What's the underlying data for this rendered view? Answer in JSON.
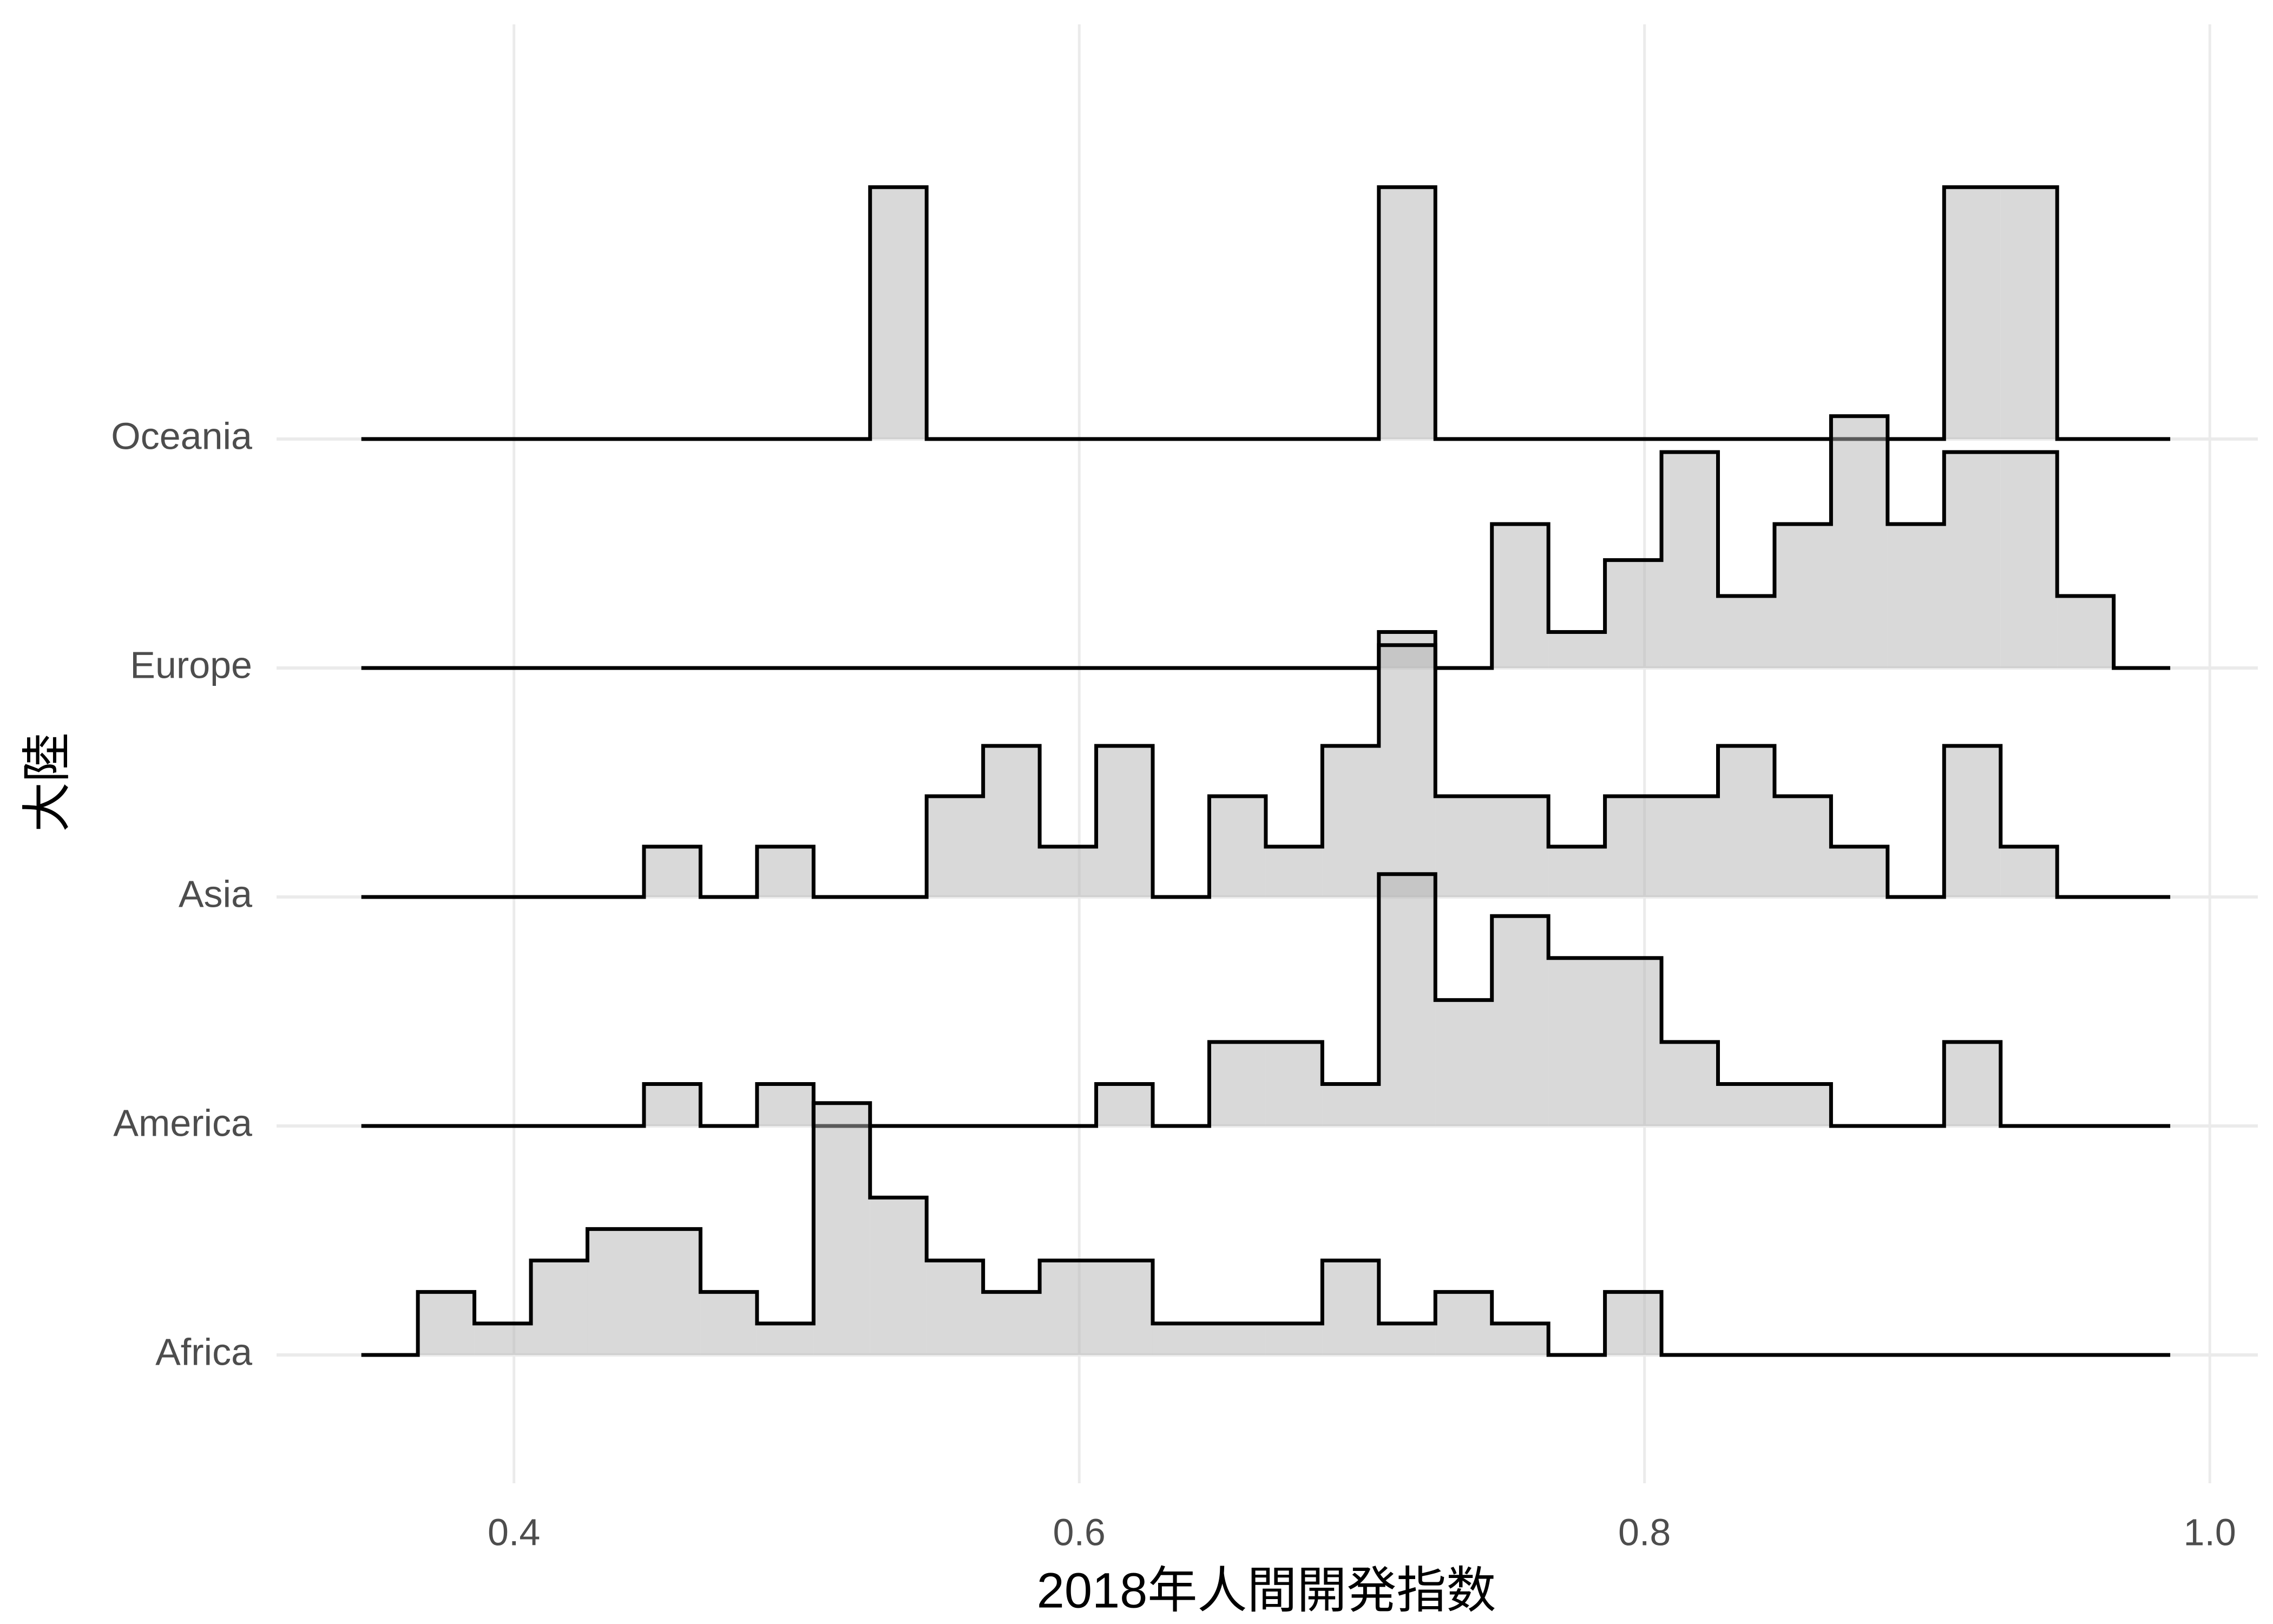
{
  "chart_data": {
    "type": "ridgeline-histogram",
    "xlabel": "2018年人間開発指数",
    "ylabel": "大陸",
    "bins": [
      0.346,
      0.366,
      0.386,
      0.406,
      0.426,
      0.446,
      0.466,
      0.486,
      0.506,
      0.526,
      0.546,
      0.566,
      0.586,
      0.606,
      0.626,
      0.646,
      0.666,
      0.686,
      0.706,
      0.726,
      0.746,
      0.766,
      0.786,
      0.806,
      0.826,
      0.846,
      0.866,
      0.886,
      0.906,
      0.926,
      0.946,
      0.966,
      0.986
    ],
    "series": [
      {
        "name": "Africa",
        "values": [
          0,
          2,
          1,
          3,
          4,
          4,
          2,
          1,
          8,
          5,
          3,
          2,
          3,
          3,
          1,
          1,
          1,
          3,
          1,
          2,
          1,
          0,
          2,
          0,
          0,
          0,
          0,
          0,
          0,
          0,
          0,
          0
        ]
      },
      {
        "name": "America",
        "values": [
          0,
          0,
          0,
          0,
          0,
          1,
          0,
          1,
          0,
          0,
          0,
          0,
          0,
          1,
          0,
          2,
          2,
          1,
          6,
          3,
          5,
          4,
          4,
          2,
          1,
          1,
          0,
          0,
          2,
          0,
          0,
          0
        ]
      },
      {
        "name": "Asia",
        "values": [
          0,
          0,
          0,
          0,
          0,
          1,
          0,
          1,
          0,
          0,
          2,
          3,
          1,
          3,
          0,
          2,
          1,
          3,
          5,
          2,
          2,
          1,
          2,
          2,
          3,
          2,
          1,
          0,
          3,
          1,
          0,
          0
        ]
      },
      {
        "name": "Europe",
        "values": [
          0,
          0,
          0,
          0,
          0,
          0,
          0,
          0,
          0,
          0,
          0,
          0,
          0,
          0,
          0,
          0,
          0,
          0,
          1,
          0,
          4,
          1,
          3,
          6,
          2,
          4,
          7,
          4,
          6,
          6,
          2,
          0
        ]
      },
      {
        "name": "Oceania",
        "values": [
          0,
          0,
          0,
          0,
          0,
          0,
          0,
          0,
          0,
          1,
          0,
          0,
          0,
          0,
          0,
          0,
          0,
          0,
          1,
          0,
          0,
          0,
          0,
          0,
          0,
          0,
          0,
          0,
          1,
          1,
          0,
          0
        ]
      }
    ],
    "color": "#b3b3b3",
    "xlim": [
      0.316,
      1.017
    ],
    "xticks": [
      0.4,
      0.6,
      0.8,
      {
        "value": 1,
        "label": "1.0"
      }
    ],
    "grid": true
  }
}
